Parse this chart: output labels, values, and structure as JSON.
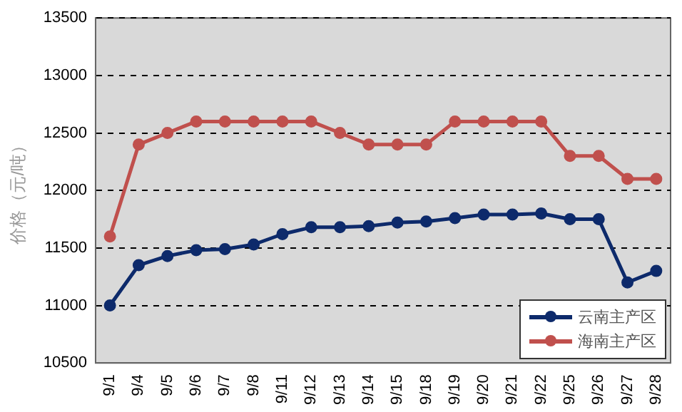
{
  "chart_data": {
    "type": "line",
    "ylabel": "价格（元/吨）",
    "categories": [
      "9/1",
      "9/4",
      "9/5",
      "9/6",
      "9/7",
      "9/8",
      "9/11",
      "9/12",
      "9/13",
      "9/14",
      "9/15",
      "9/18",
      "9/19",
      "9/20",
      "9/21",
      "9/22",
      "9/25",
      "9/26",
      "9/27",
      "9/28"
    ],
    "series": [
      {
        "name": "云南主产区",
        "color": "#0d2a6b",
        "values": [
          11000,
          11350,
          11430,
          11480,
          11490,
          11530,
          11620,
          11680,
          11680,
          11690,
          11720,
          11730,
          11760,
          11790,
          11790,
          11800,
          11750,
          11750,
          11200,
          11300
        ]
      },
      {
        "name": "海南主产区",
        "color": "#c0504d",
        "values": [
          11600,
          12400,
          12500,
          12600,
          12600,
          12600,
          12600,
          12600,
          12500,
          12400,
          12400,
          12400,
          12600,
          12600,
          12600,
          12600,
          12300,
          12300,
          12100,
          12100
        ]
      }
    ],
    "ylim": [
      10500,
      13500
    ],
    "yticks": [
      10500,
      11000,
      11500,
      12000,
      12500,
      13000,
      13500
    ],
    "grid": "y",
    "legend": "bottom right",
    "marker": "circle",
    "line_style": "solid"
  }
}
